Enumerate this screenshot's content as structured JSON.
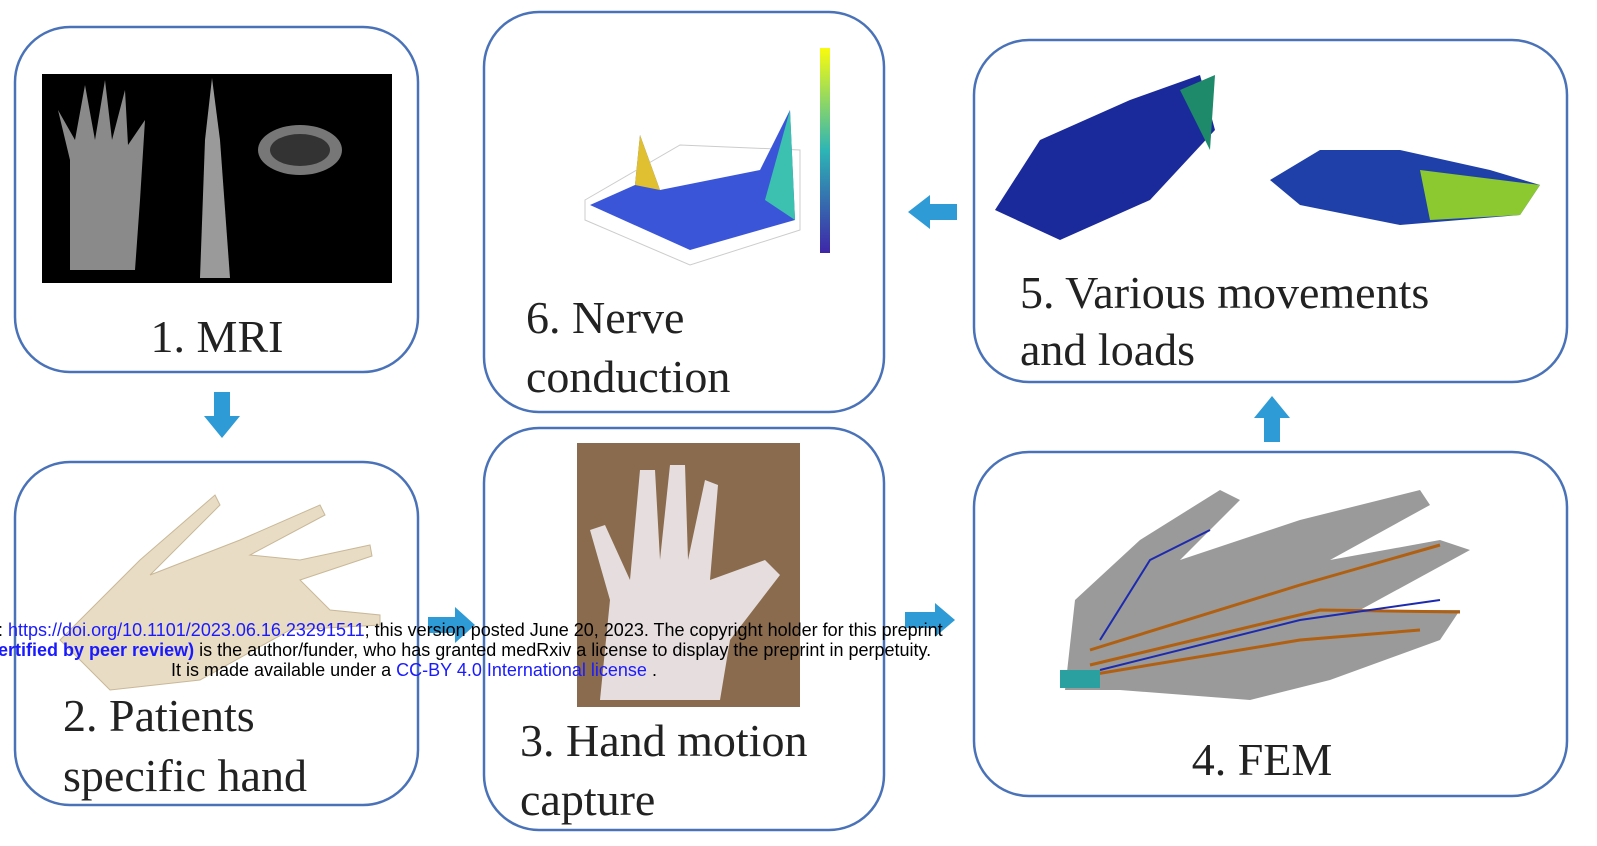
{
  "nodes": [
    {
      "label": [
        "1. MRI"
      ]
    },
    {
      "label": [
        "2. Patients",
        "specific hand"
      ]
    },
    {
      "label": [
        "3. Hand motion",
        "capture"
      ]
    },
    {
      "label": [
        "4. FEM"
      ]
    },
    {
      "label": [
        "5. Various movements",
        "and loads"
      ]
    },
    {
      "label": [
        "6. Nerve",
        "conduction"
      ]
    }
  ],
  "notice": {
    "lines": [
      [
        ": ",
        "https://doi.org/10.1101/2023.06.16.23291511",
        "; this version posted June 20, 2023. The copyright holder for this preprint"
      ],
      [
        "ertified by peer review)",
        " is the author/funder, who has granted medRxiv a license to display the preprint in perpetuity."
      ],
      [
        "It is made available under a ",
        "CC-BY 4.0 International license",
        " ."
      ]
    ]
  }
}
